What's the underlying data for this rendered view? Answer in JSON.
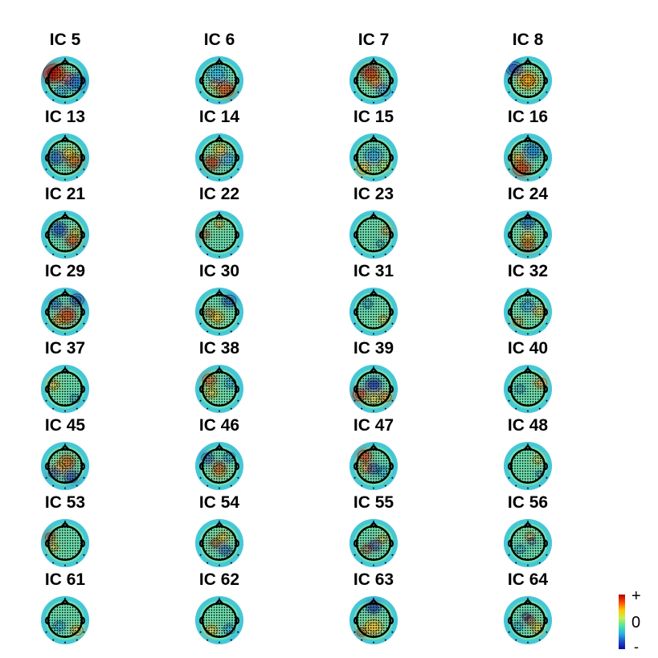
{
  "components": [
    {
      "label": "IC 5",
      "blobs": [
        [
          "#c00000",
          -0.55,
          -0.35,
          0.55
        ],
        [
          "#ff7a1a",
          0.1,
          -0.1,
          0.35
        ],
        [
          "#1e6fd0",
          0.55,
          0.1,
          0.5
        ],
        [
          "#2aa8e8",
          -0.2,
          0.55,
          0.3
        ]
      ]
    },
    {
      "label": "IC 6",
      "blobs": [
        [
          "#d84010",
          0.3,
          0.45,
          0.45
        ],
        [
          "#ffb020",
          -0.2,
          0.2,
          0.3
        ],
        [
          "#30b8e8",
          -0.1,
          -0.3,
          0.5
        ]
      ]
    },
    {
      "label": "IC 7",
      "blobs": [
        [
          "#c01010",
          -0.15,
          -0.35,
          0.45
        ],
        [
          "#ff8a20",
          0.05,
          0.05,
          0.35
        ],
        [
          "#30a0e0",
          0.5,
          0.5,
          0.35
        ]
      ]
    },
    {
      "label": "IC 8",
      "blobs": [
        [
          "#c00000",
          0.0,
          0.0,
          0.35
        ],
        [
          "#ffb020",
          0.0,
          0.0,
          0.55
        ],
        [
          "#1e40b0",
          -0.7,
          -0.6,
          0.4
        ]
      ]
    },
    {
      "label": "IC 13",
      "blobs": [
        [
          "#c84010",
          0.45,
          0.15,
          0.4
        ],
        [
          "#ffd030",
          0.2,
          -0.2,
          0.35
        ],
        [
          "#1e5ec8",
          -0.45,
          0.0,
          0.4
        ]
      ]
    },
    {
      "label": "IC 14",
      "blobs": [
        [
          "#c83010",
          -0.35,
          0.25,
          0.4
        ],
        [
          "#ffc030",
          0.05,
          -0.4,
          0.35
        ],
        [
          "#30a8e8",
          0.45,
          0.1,
          0.35
        ]
      ]
    },
    {
      "label": "IC 15",
      "blobs": [
        [
          "#ffc030",
          -0.5,
          0.55,
          0.35
        ],
        [
          "#30a0e0",
          0.0,
          -0.1,
          0.45
        ],
        [
          "#c8e050",
          0.5,
          0.4,
          0.3
        ]
      ]
    },
    {
      "label": "IC 16",
      "blobs": [
        [
          "#d03010",
          -0.3,
          0.55,
          0.45
        ],
        [
          "#ffa020",
          -0.5,
          0.0,
          0.3
        ],
        [
          "#2080d8",
          0.25,
          -0.35,
          0.45
        ]
      ]
    },
    {
      "label": "IC 21",
      "blobs": [
        [
          "#1e4fc8",
          -0.3,
          -0.25,
          0.4
        ],
        [
          "#d83010",
          0.4,
          0.3,
          0.35
        ],
        [
          "#ffd030",
          0.5,
          -0.1,
          0.25
        ]
      ]
    },
    {
      "label": "IC 22",
      "blobs": [
        [
          "#e05020",
          -0.75,
          0.0,
          0.25
        ],
        [
          "#ffc030",
          0.0,
          -0.55,
          0.25
        ]
      ]
    },
    {
      "label": "IC 23",
      "blobs": [
        [
          "#ff9030",
          0.65,
          -0.2,
          0.25
        ],
        [
          "#30a0e0",
          0.35,
          0.45,
          0.2
        ]
      ]
    },
    {
      "label": "IC 24",
      "blobs": [
        [
          "#c01010",
          0.0,
          0.5,
          0.35
        ],
        [
          "#ffc030",
          0.0,
          0.15,
          0.35
        ],
        [
          "#2070d0",
          0.0,
          -0.6,
          0.35
        ]
      ]
    },
    {
      "label": "IC 29",
      "blobs": [
        [
          "#d03010",
          0.1,
          0.2,
          0.45
        ],
        [
          "#ff9020",
          -0.3,
          0.4,
          0.3
        ],
        [
          "#1e40b0",
          0.6,
          -0.6,
          0.35
        ],
        [
          "#1e60c8",
          -0.5,
          -0.4,
          0.3
        ]
      ]
    },
    {
      "label": "IC 30",
      "blobs": [
        [
          "#2050c0",
          0.5,
          -0.55,
          0.35
        ],
        [
          "#ffc030",
          -0.1,
          0.3,
          0.35
        ],
        [
          "#d06020",
          -0.5,
          0.05,
          0.25
        ]
      ]
    },
    {
      "label": "IC 31",
      "blobs": [
        [
          "#30a0e0",
          -0.3,
          -0.4,
          0.25
        ],
        [
          "#ffd040",
          0.5,
          0.4,
          0.25
        ]
      ]
    },
    {
      "label": "IC 32",
      "blobs": [
        [
          "#ffc030",
          0.6,
          0.0,
          0.3
        ],
        [
          "#30a8e8",
          0.0,
          -0.3,
          0.35
        ],
        [
          "#e8a030",
          -0.5,
          0.5,
          0.25
        ]
      ]
    },
    {
      "label": "IC 37",
      "blobs": [
        [
          "#ffc030",
          -0.6,
          -0.2,
          0.3
        ],
        [
          "#30a0e0",
          0.5,
          0.5,
          0.25
        ]
      ]
    },
    {
      "label": "IC 38",
      "blobs": [
        [
          "#e06020",
          -0.5,
          -0.45,
          0.35
        ],
        [
          "#ffc030",
          -0.4,
          0.2,
          0.3
        ],
        [
          "#30a8e8",
          0.55,
          -0.3,
          0.3
        ]
      ]
    },
    {
      "label": "IC 39",
      "blobs": [
        [
          "#1e30b0",
          0.0,
          -0.2,
          0.4
        ],
        [
          "#e03010",
          -0.7,
          0.3,
          0.35
        ],
        [
          "#ff8020",
          0.6,
          0.4,
          0.3
        ],
        [
          "#ffd040",
          0.0,
          0.5,
          0.3
        ]
      ]
    },
    {
      "label": "IC 40",
      "blobs": [
        [
          "#ff9030",
          0.65,
          -0.3,
          0.3
        ],
        [
          "#30a0e0",
          -0.4,
          0.0,
          0.25
        ]
      ]
    },
    {
      "label": "IC 45",
      "blobs": [
        [
          "#d05010",
          0.1,
          -0.2,
          0.4
        ],
        [
          "#ffc030",
          -0.3,
          0.1,
          0.35
        ],
        [
          "#1e40b0",
          0.3,
          0.55,
          0.35
        ],
        [
          "#2060c8",
          -0.55,
          0.35,
          0.3
        ]
      ]
    },
    {
      "label": "IC 46",
      "blobs": [
        [
          "#c02010",
          0.0,
          0.05,
          0.3
        ],
        [
          "#ff9030",
          0.0,
          0.25,
          0.35
        ],
        [
          "#1e50c0",
          -0.6,
          -0.4,
          0.3
        ],
        [
          "#30a8e8",
          0.5,
          -0.45,
          0.3
        ]
      ]
    },
    {
      "label": "IC 47",
      "blobs": [
        [
          "#e03010",
          -0.45,
          -0.5,
          0.35
        ],
        [
          "#ffa020",
          -0.4,
          0.1,
          0.3
        ],
        [
          "#1e40b0",
          0.0,
          0.15,
          0.3
        ],
        [
          "#30b0e8",
          0.5,
          0.3,
          0.3
        ]
      ]
    },
    {
      "label": "IC 48",
      "blobs": [
        [
          "#ffd040",
          0.5,
          -0.3,
          0.25
        ],
        [
          "#30a0e0",
          0.6,
          0.4,
          0.2
        ]
      ]
    },
    {
      "label": "IC 53",
      "blobs": [
        [
          "#d02010",
          -0.75,
          -0.3,
          0.25
        ],
        [
          "#ffc030",
          -0.6,
          0.2,
          0.25
        ]
      ]
    },
    {
      "label": "IC 54",
      "blobs": [
        [
          "#c03010",
          -0.2,
          0.0,
          0.25
        ],
        [
          "#ffc030",
          0.2,
          -0.3,
          0.3
        ],
        [
          "#2060c8",
          0.3,
          0.35,
          0.3
        ]
      ]
    },
    {
      "label": "IC 55",
      "blobs": [
        [
          "#1e40b0",
          0.1,
          0.1,
          0.3
        ],
        [
          "#d05020",
          -0.35,
          0.3,
          0.25
        ],
        [
          "#ffd040",
          0.45,
          -0.2,
          0.25
        ]
      ]
    },
    {
      "label": "IC 56",
      "blobs": [
        [
          "#ffc030",
          0.1,
          -0.35,
          0.25
        ],
        [
          "#1e50c0",
          0.2,
          -0.1,
          0.2
        ],
        [
          "#30a8e8",
          -0.4,
          0.3,
          0.25
        ]
      ]
    },
    {
      "label": "IC 61",
      "blobs": [
        [
          "#ffc030",
          0.6,
          0.5,
          0.3
        ],
        [
          "#30a0e0",
          -0.3,
          0.3,
          0.3
        ]
      ]
    },
    {
      "label": "IC 62",
      "blobs": [
        [
          "#ffc030",
          -0.4,
          0.5,
          0.3
        ],
        [
          "#30a8e8",
          0.5,
          0.45,
          0.3
        ]
      ]
    },
    {
      "label": "IC 63",
      "blobs": [
        [
          "#1e30b0",
          0.0,
          -0.65,
          0.35
        ],
        [
          "#ffc030",
          0.0,
          0.35,
          0.45
        ],
        [
          "#e06020",
          -0.6,
          0.6,
          0.25
        ]
      ]
    },
    {
      "label": "IC 64",
      "blobs": [
        [
          "#c02010",
          0.1,
          0.0,
          0.25
        ],
        [
          "#ffc030",
          0.5,
          0.4,
          0.3
        ],
        [
          "#1e40b0",
          -0.1,
          -0.2,
          0.2
        ],
        [
          "#30a8e8",
          -0.5,
          0.3,
          0.25
        ]
      ]
    }
  ],
  "colorbar": {
    "max_label": "+",
    "mid_label": "0",
    "min_label": "-"
  }
}
